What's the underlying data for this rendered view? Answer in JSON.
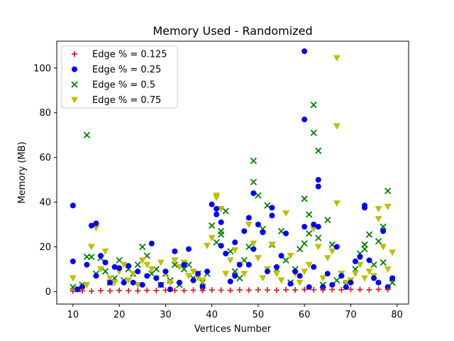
{
  "chart_data": {
    "type": "scatter",
    "title": "Memory Used - Randomized",
    "xlabel": "Vertices Number",
    "ylabel": "Memory (MB)",
    "xlim": [
      6.5,
      82.5
    ],
    "ylim": [
      -5.6,
      112
    ],
    "xticks": [
      10,
      20,
      30,
      40,
      50,
      60,
      70,
      80
    ],
    "yticks": [
      0,
      20,
      40,
      60,
      80,
      100
    ],
    "grid": false,
    "legend_position": "top-left",
    "series": [
      {
        "name": "Edge % = 0.125",
        "marker": "plus",
        "color": "#d62728",
        "points": [
          [
            10,
            0.2
          ],
          [
            12,
            0.3
          ],
          [
            14,
            0.2
          ],
          [
            16,
            0.4
          ],
          [
            18,
            0.3
          ],
          [
            20,
            0.5
          ],
          [
            22,
            0.4
          ],
          [
            24,
            0.3
          ],
          [
            26,
            0.5
          ],
          [
            28,
            0.4
          ],
          [
            30,
            0.6
          ],
          [
            32,
            0.5
          ],
          [
            34,
            0.4
          ],
          [
            36,
            0.6
          ],
          [
            38,
            0.5
          ],
          [
            40,
            0.7
          ],
          [
            42,
            0.6
          ],
          [
            44,
            0.5
          ],
          [
            46,
            0.7
          ],
          [
            48,
            0.6
          ],
          [
            50,
            0.8
          ],
          [
            52,
            0.7
          ],
          [
            54,
            0.6
          ],
          [
            56,
            0.8
          ],
          [
            58,
            0.7
          ],
          [
            60,
            0.9
          ],
          [
            62,
            0.8
          ],
          [
            64,
            0.7
          ],
          [
            66,
            0.9
          ],
          [
            68,
            0.8
          ],
          [
            70,
            1.0
          ],
          [
            72,
            0.9
          ],
          [
            74,
            0.8
          ],
          [
            76,
            1.0
          ],
          [
            78,
            0.9
          ]
        ]
      },
      {
        "name": "Edge % = 0.25",
        "marker": "circle",
        "color": "#0000ff",
        "points": [
          [
            10,
            38.5
          ],
          [
            10,
            13.5
          ],
          [
            11,
            1
          ],
          [
            12,
            2
          ],
          [
            13,
            12
          ],
          [
            14,
            29.5
          ],
          [
            15,
            30.5
          ],
          [
            15,
            7
          ],
          [
            16,
            16
          ],
          [
            17,
            13
          ],
          [
            18,
            4
          ],
          [
            19,
            11
          ],
          [
            20,
            10.5
          ],
          [
            21,
            4
          ],
          [
            22,
            11.5
          ],
          [
            23,
            4
          ],
          [
            24,
            9
          ],
          [
            25,
            3
          ],
          [
            26,
            7
          ],
          [
            27,
            21.5
          ],
          [
            28,
            6
          ],
          [
            29,
            3
          ],
          [
            30,
            9
          ],
          [
            31,
            1
          ],
          [
            32,
            18
          ],
          [
            33,
            4
          ],
          [
            34,
            12
          ],
          [
            35,
            19
          ],
          [
            36,
            5
          ],
          [
            37,
            8
          ],
          [
            38,
            2
          ],
          [
            39,
            9
          ],
          [
            40,
            39
          ],
          [
            41,
            34.5
          ],
          [
            41,
            37
          ],
          [
            42,
            31
          ],
          [
            42,
            20.5
          ],
          [
            43,
            17
          ],
          [
            44,
            4.5
          ],
          [
            45,
            22
          ],
          [
            45,
            7
          ],
          [
            46,
            12
          ],
          [
            47,
            27
          ],
          [
            48,
            33
          ],
          [
            48,
            12
          ],
          [
            49,
            44
          ],
          [
            49,
            19
          ],
          [
            50,
            30
          ],
          [
            51,
            26.5
          ],
          [
            52,
            9
          ],
          [
            53,
            37.5
          ],
          [
            53,
            34
          ],
          [
            54,
            11
          ],
          [
            55,
            16
          ],
          [
            56,
            26
          ],
          [
            57,
            3.5
          ],
          [
            58,
            9
          ],
          [
            59,
            7
          ],
          [
            60,
            107.5
          ],
          [
            60,
            77
          ],
          [
            60,
            29
          ],
          [
            61,
            2
          ],
          [
            62,
            30
          ],
          [
            62,
            11
          ],
          [
            63,
            50
          ],
          [
            63,
            47
          ],
          [
            63,
            29
          ],
          [
            64,
            2
          ],
          [
            65,
            8
          ],
          [
            66,
            3
          ],
          [
            67,
            20
          ],
          [
            68,
            7
          ],
          [
            69,
            2
          ],
          [
            70,
            4
          ],
          [
            71,
            13.5
          ],
          [
            72,
            15.5
          ],
          [
            73,
            38.5
          ],
          [
            73,
            37.5
          ],
          [
            74,
            14
          ],
          [
            75,
            6
          ],
          [
            76,
            4
          ],
          [
            77,
            27
          ],
          [
            78,
            2
          ],
          [
            79,
            6
          ]
        ]
      },
      {
        "name": "Edge % = 0.5",
        "marker": "x",
        "color": "#008000",
        "points": [
          [
            10,
            2
          ],
          [
            11,
            1
          ],
          [
            12,
            3
          ],
          [
            13,
            70
          ],
          [
            13,
            15.5
          ],
          [
            14,
            15.5
          ],
          [
            15,
            8
          ],
          [
            16,
            15
          ],
          [
            17,
            9
          ],
          [
            18,
            4
          ],
          [
            19,
            6
          ],
          [
            20,
            14
          ],
          [
            21,
            5
          ],
          [
            22,
            10
          ],
          [
            23,
            8
          ],
          [
            24,
            12
          ],
          [
            25,
            20
          ],
          [
            26,
            16
          ],
          [
            27,
            8
          ],
          [
            28,
            10
          ],
          [
            29,
            3
          ],
          [
            30,
            8
          ],
          [
            31,
            5
          ],
          [
            32,
            12
          ],
          [
            33,
            3
          ],
          [
            34,
            10
          ],
          [
            35,
            12
          ],
          [
            36,
            6
          ],
          [
            37,
            8
          ],
          [
            38,
            4
          ],
          [
            39,
            8
          ],
          [
            40,
            29.5
          ],
          [
            41,
            22
          ],
          [
            42,
            25.5
          ],
          [
            42,
            27
          ],
          [
            43,
            36
          ],
          [
            44,
            18
          ],
          [
            45,
            9
          ],
          [
            46,
            6
          ],
          [
            47,
            14
          ],
          [
            48,
            20
          ],
          [
            49,
            58.5
          ],
          [
            49,
            49
          ],
          [
            50,
            43
          ],
          [
            51,
            28
          ],
          [
            52,
            38.5
          ],
          [
            53,
            21
          ],
          [
            54,
            10
          ],
          [
            55,
            27
          ],
          [
            56,
            14
          ],
          [
            57,
            4
          ],
          [
            58,
            10
          ],
          [
            59,
            19
          ],
          [
            60,
            41.5
          ],
          [
            60,
            21.5
          ],
          [
            61,
            34.5
          ],
          [
            61,
            26
          ],
          [
            62,
            83.5
          ],
          [
            62,
            71
          ],
          [
            63,
            63
          ],
          [
            63,
            24
          ],
          [
            64,
            3
          ],
          [
            65,
            32
          ],
          [
            66,
            21
          ],
          [
            67,
            5
          ],
          [
            68,
            8
          ],
          [
            69,
            3
          ],
          [
            70,
            5
          ],
          [
            71,
            10
          ],
          [
            72,
            17
          ],
          [
            73,
            21
          ],
          [
            73,
            19
          ],
          [
            74,
            25.5
          ],
          [
            75,
            12
          ],
          [
            76,
            22.5
          ],
          [
            77,
            29
          ],
          [
            77,
            13
          ],
          [
            78,
            45
          ],
          [
            79,
            4
          ]
        ]
      },
      {
        "name": "Edge % = 0.75",
        "marker": "triangle-down",
        "color": "#bfbf00",
        "points": [
          [
            10,
            6
          ],
          [
            11,
            1
          ],
          [
            12,
            2
          ],
          [
            13,
            3
          ],
          [
            14,
            20
          ],
          [
            15,
            28.5
          ],
          [
            16,
            10
          ],
          [
            17,
            18
          ],
          [
            18,
            6
          ],
          [
            19,
            4
          ],
          [
            20,
            9
          ],
          [
            21,
            12
          ],
          [
            22,
            5
          ],
          [
            23,
            8
          ],
          [
            24,
            3
          ],
          [
            25,
            14
          ],
          [
            26,
            12
          ],
          [
            27,
            10
          ],
          [
            28,
            6
          ],
          [
            29,
            13
          ],
          [
            30,
            8
          ],
          [
            31,
            4
          ],
          [
            32,
            14
          ],
          [
            33,
            11
          ],
          [
            34,
            13
          ],
          [
            35,
            7
          ],
          [
            36,
            9
          ],
          [
            37,
            6
          ],
          [
            38,
            5
          ],
          [
            39,
            20.5
          ],
          [
            40,
            24
          ],
          [
            41,
            42
          ],
          [
            41,
            43
          ],
          [
            42,
            37
          ],
          [
            43,
            8
          ],
          [
            44,
            14
          ],
          [
            45,
            18.5
          ],
          [
            46,
            12
          ],
          [
            47,
            8
          ],
          [
            48,
            30
          ],
          [
            49,
            21.5
          ],
          [
            50,
            15
          ],
          [
            51,
            6
          ],
          [
            52,
            10
          ],
          [
            53,
            21
          ],
          [
            54,
            8
          ],
          [
            55,
            5
          ],
          [
            56,
            35
          ],
          [
            57,
            16
          ],
          [
            58,
            8
          ],
          [
            59,
            4
          ],
          [
            60,
            9
          ],
          [
            61,
            12
          ],
          [
            62,
            28
          ],
          [
            63,
            20
          ],
          [
            64,
            6
          ],
          [
            65,
            15
          ],
          [
            66,
            18
          ],
          [
            67,
            104.5
          ],
          [
            67,
            74
          ],
          [
            67,
            39.5
          ],
          [
            68,
            8
          ],
          [
            69,
            4
          ],
          [
            70,
            5
          ],
          [
            71,
            8
          ],
          [
            72,
            12
          ],
          [
            73,
            6
          ],
          [
            74,
            9
          ],
          [
            75,
            7
          ],
          [
            76,
            37
          ],
          [
            76,
            32.5
          ],
          [
            77,
            20
          ],
          [
            78,
            38
          ],
          [
            78,
            10
          ],
          [
            79,
            17.5
          ]
        ]
      }
    ]
  }
}
